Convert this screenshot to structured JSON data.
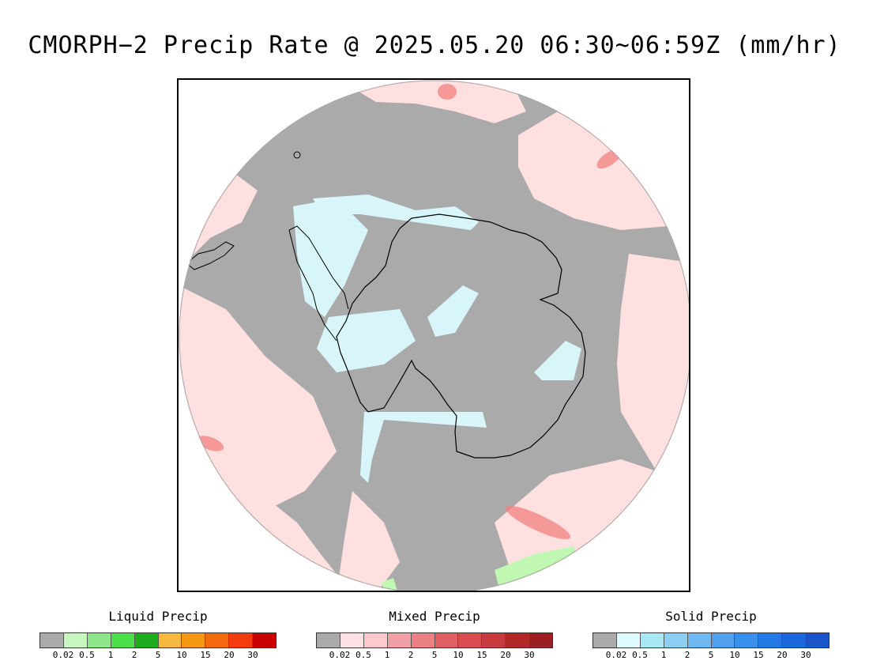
{
  "title": "CMORPH−2 Precip Rate @ 2025.05.20 06:30~06:59Z (mm/hr)",
  "map": {
    "projection": "south-polar-stereographic",
    "colors": {
      "no_precip": "#aaaaaa",
      "mixed_light": "#ffe0e0",
      "mixed_medium": "#f08080",
      "solid_light": "#d8f6fa",
      "liquid_light": "#bff7b3",
      "coastline": "#000000"
    }
  },
  "legends": [
    {
      "title": "Liquid Precip",
      "ticks": [
        "0.02",
        "0.5",
        "1",
        "2",
        "5",
        "10",
        "15",
        "20",
        "30"
      ],
      "colors": [
        "#aaaaaa",
        "#c8f7c0",
        "#8ee88a",
        "#4cdf4c",
        "#1faa1f",
        "#f5b840",
        "#f59a10",
        "#f56a10",
        "#f53a10",
        "#c80000"
      ]
    },
    {
      "title": "Mixed Precip",
      "ticks": [
        "0.02",
        "0.5",
        "1",
        "2",
        "5",
        "10",
        "15",
        "20",
        "30"
      ],
      "colors": [
        "#aaaaaa",
        "#ffe0e4",
        "#ffc8cc",
        "#f0a0a4",
        "#e88084",
        "#e06064",
        "#d84c50",
        "#c83a3e",
        "#b02828",
        "#9a1e22"
      ]
    },
    {
      "title": "Solid Precip",
      "ticks": [
        "0.02",
        "0.5",
        "1",
        "2",
        "5",
        "10",
        "15",
        "20",
        "30"
      ],
      "colors": [
        "#aaaaaa",
        "#e0fbfd",
        "#a8e8f4",
        "#8ccff4",
        "#70b8f0",
        "#50a0ec",
        "#3890ea",
        "#2478e4",
        "#1a68dc",
        "#1a54c8"
      ]
    }
  ]
}
